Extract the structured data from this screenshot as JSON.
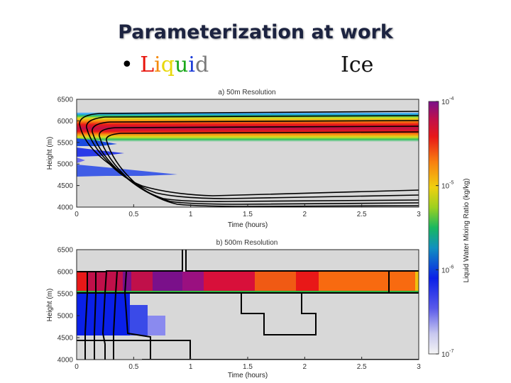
{
  "slide": {
    "title": "Parameterization at work",
    "bullet": "•",
    "liquid_label": "Liquid",
    "liquid_colors": [
      "#e8140c",
      "#f58a0a",
      "#e8d80a",
      "#1aa81a",
      "#1a3ad8",
      "#7a7a7a",
      "#8a8a8a"
    ],
    "ice_label": "Ice"
  },
  "colors": {
    "background_field": "#d8d8d8",
    "contour": "#000000"
  },
  "chart_data": [
    {
      "type": "heatmap",
      "title": "a) 50m Resolution",
      "xlabel": "Time (hours)",
      "ylabel": "Height (m)",
      "xlim": [
        0,
        3
      ],
      "ylim": [
        4000,
        6500
      ],
      "xticks": [
        "0",
        "0.5",
        "1",
        "1.5",
        "2",
        "2.5",
        "3"
      ],
      "yticks": [
        "4000",
        "4500",
        "5000",
        "5500",
        "6000",
        "6500"
      ],
      "colorbar": {
        "label": "Liquid Water Mixing Ratio (kg/kg)",
        "scale": "log",
        "range": [
          1e-07,
          0.0001
        ],
        "ticks": [
          "10",
          "10",
          "10",
          "10"
        ],
        "exponents": [
          "-4",
          "-5",
          "-6",
          "-7"
        ]
      }
    },
    {
      "type": "heatmap",
      "title": "b) 500m Resolution",
      "xlabel": "Time (hours)",
      "ylabel": "Height (m)",
      "xlim": [
        0,
        3
      ],
      "ylim": [
        4000,
        6500
      ],
      "xticks": [
        "0",
        "0.5",
        "1",
        "1.5",
        "2",
        "2.5",
        "3"
      ],
      "yticks": [
        "4000",
        "4500",
        "5000",
        "5500",
        "6000",
        "6500"
      ]
    }
  ]
}
